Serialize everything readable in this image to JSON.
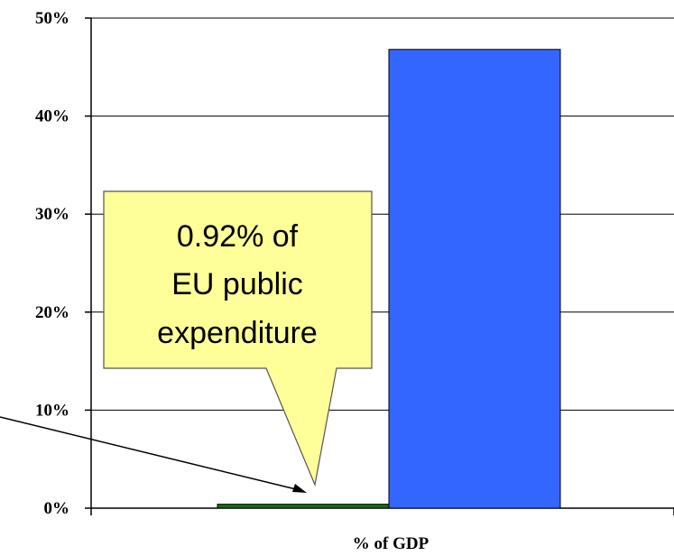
{
  "chart_data": {
    "type": "bar",
    "xlabel": "% of GDP",
    "ylabel": "",
    "ylim": [
      0,
      50
    ],
    "yticks": [
      "0%",
      "10%",
      "20%",
      "30%",
      "40%",
      "50%"
    ],
    "grid": true,
    "series": [
      {
        "values": [
          0.4
        ],
        "color": "#1a6b1a"
      },
      {
        "values": [
          46.8
        ],
        "color": "#3366ff"
      }
    ],
    "annotations": [
      {
        "text": "0.92% of EU public expenditure",
        "color": "#ffff99"
      }
    ]
  },
  "callout": {
    "line1": "0.92% of",
    "line2": "EU public",
    "line3": "expenditure"
  }
}
